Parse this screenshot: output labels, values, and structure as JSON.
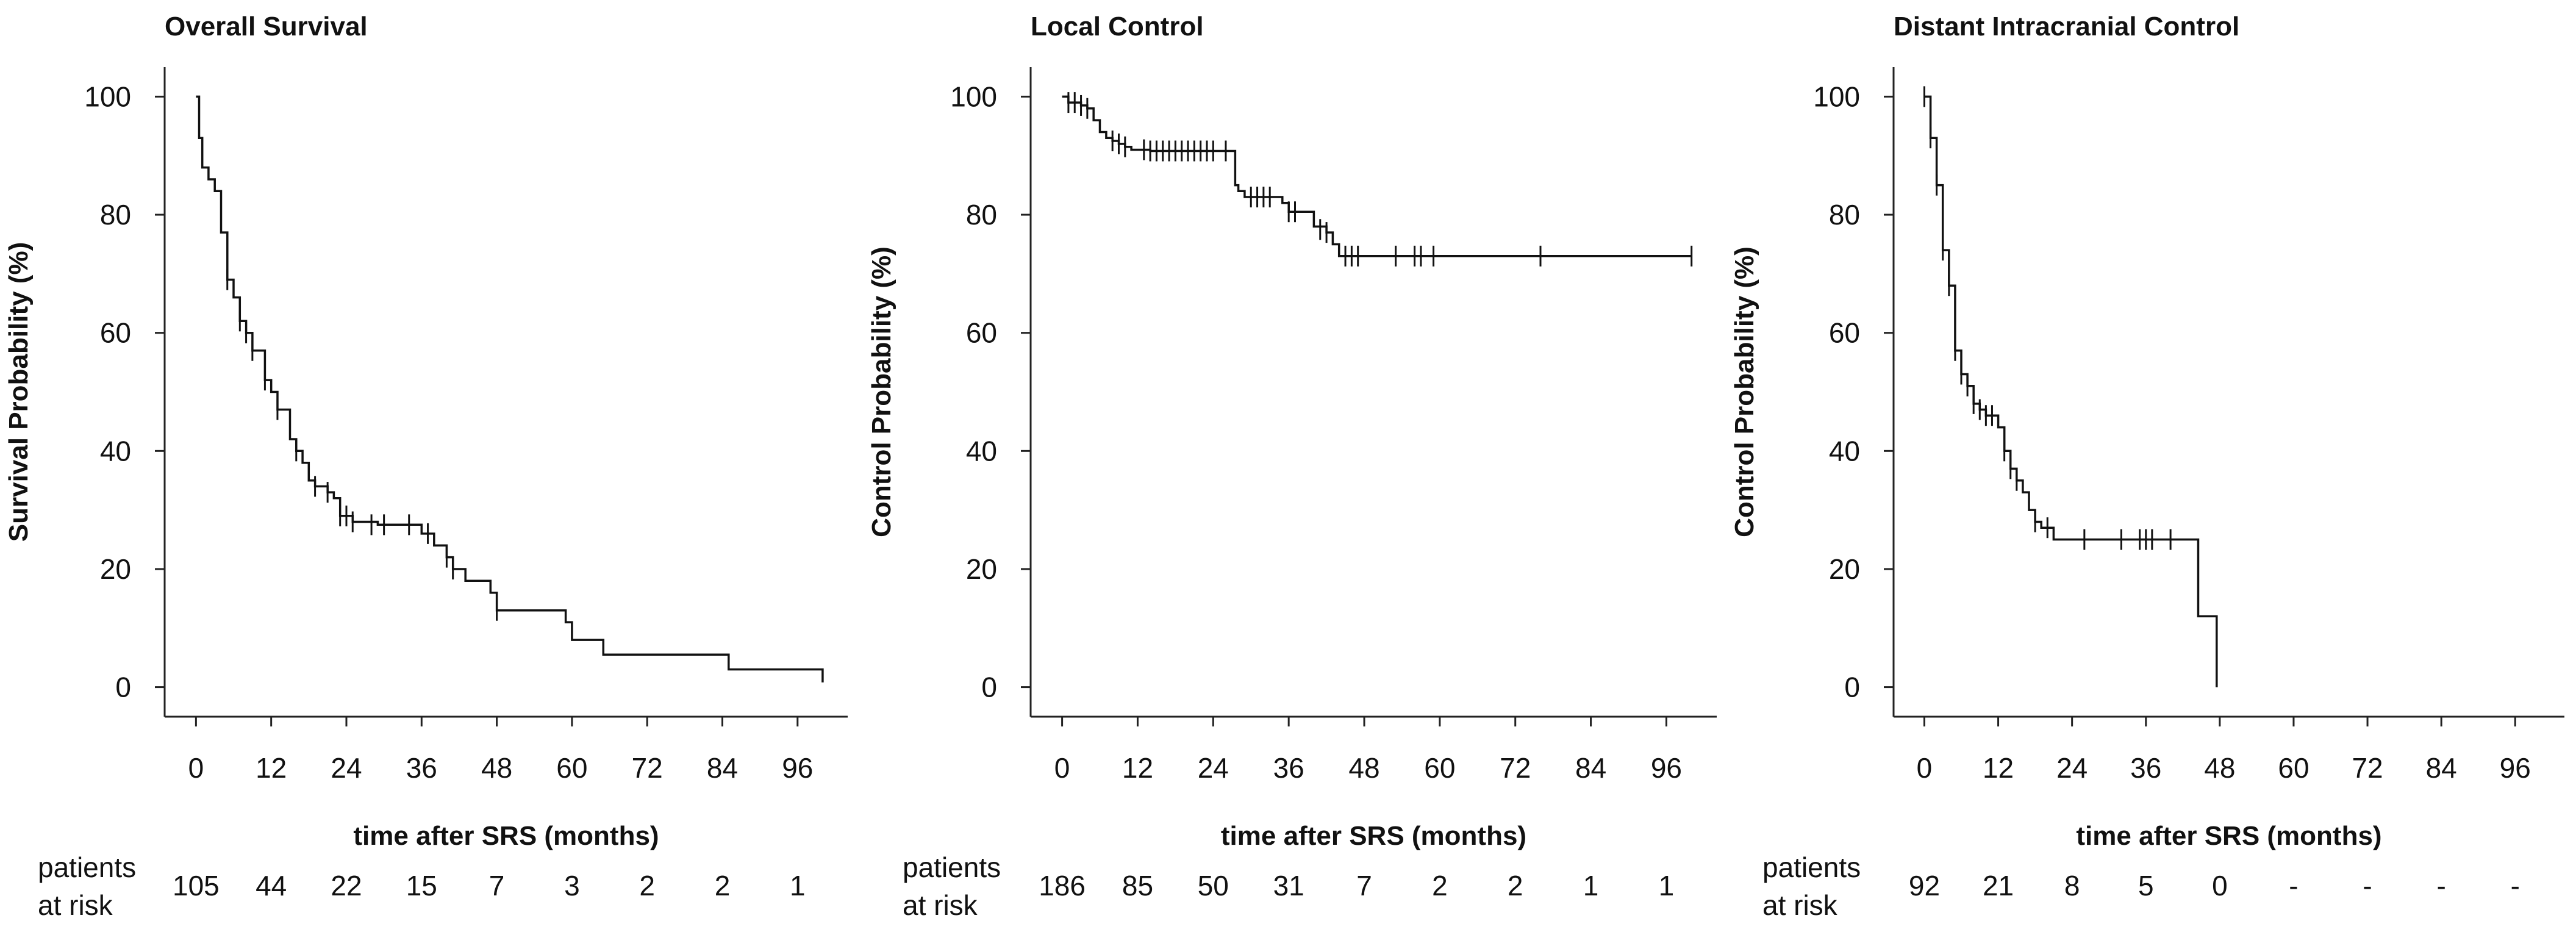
{
  "chart_data": [
    {
      "type": "line",
      "step": true,
      "title": "Overall Survival",
      "ylabel": "Survival Probability (%)",
      "xlabel": "time after SRS (months)",
      "xlim": [
        -5,
        104
      ],
      "ylim": [
        -5,
        105
      ],
      "xticks": [
        0,
        12,
        24,
        36,
        48,
        60,
        72,
        84,
        96
      ],
      "yticks": [
        0,
        20,
        40,
        60,
        80,
        100
      ],
      "risk_label": [
        "patients",
        "at risk"
      ],
      "at_risk": [
        "105",
        "44",
        "22",
        "15",
        "7",
        "3",
        "2",
        "2",
        "1"
      ],
      "series": [
        {
          "name": "Overall Survival",
          "points": [
            [
              0,
              100
            ],
            [
              0.5,
              93
            ],
            [
              1,
              88
            ],
            [
              2,
              86
            ],
            [
              3,
              84
            ],
            [
              4,
              77
            ],
            [
              5,
              69
            ],
            [
              6,
              66
            ],
            [
              7,
              62
            ],
            [
              8,
              60
            ],
            [
              9,
              57
            ],
            [
              10,
              57
            ],
            [
              11,
              52
            ],
            [
              12,
              50
            ],
            [
              13,
              47
            ],
            [
              14,
              47
            ],
            [
              15,
              42
            ],
            [
              16,
              40
            ],
            [
              17,
              38
            ],
            [
              18,
              35
            ],
            [
              19,
              34
            ],
            [
              20,
              34
            ],
            [
              21,
              33
            ],
            [
              22,
              32
            ],
            [
              23,
              29
            ],
            [
              24,
              29
            ],
            [
              25,
              28
            ],
            [
              27,
              28
            ],
            [
              29,
              27.5
            ],
            [
              34,
              27.5
            ],
            [
              36,
              26
            ],
            [
              38,
              24
            ],
            [
              40,
              22
            ],
            [
              41,
              20
            ],
            [
              43,
              18
            ],
            [
              47,
              16
            ],
            [
              48,
              13
            ],
            [
              59,
              11
            ],
            [
              60,
              8
            ],
            [
              65,
              5.5
            ],
            [
              85,
              3
            ],
            [
              100,
              0.8
            ]
          ],
          "censored": [
            [
              5,
              69
            ],
            [
              7,
              62
            ],
            [
              8,
              60
            ],
            [
              9,
              57
            ],
            [
              11,
              52
            ],
            [
              13,
              47
            ],
            [
              16,
              40
            ],
            [
              19,
              34
            ],
            [
              21,
              33
            ],
            [
              23,
              29
            ],
            [
              24,
              29
            ],
            [
              25,
              28
            ],
            [
              28,
              27.5
            ],
            [
              30,
              27.5
            ],
            [
              34,
              27.5
            ],
            [
              37,
              26
            ],
            [
              40,
              22
            ],
            [
              41,
              20
            ],
            [
              48,
              13
            ]
          ]
        }
      ]
    },
    {
      "type": "line",
      "step": true,
      "title": "Local Control",
      "ylabel": "Control Probability (%)",
      "xlabel": "time after SRS (months)",
      "xlim": [
        -5,
        104
      ],
      "ylim": [
        -5,
        105
      ],
      "xticks": [
        0,
        12,
        24,
        36,
        48,
        60,
        72,
        84,
        96
      ],
      "yticks": [
        0,
        20,
        40,
        60,
        80,
        100
      ],
      "risk_label": [
        "patients",
        "at risk"
      ],
      "at_risk": [
        "186",
        "85",
        "50",
        "31",
        "7",
        "2",
        "2",
        "1",
        "1"
      ],
      "series": [
        {
          "name": "Local Control",
          "points": [
            [
              0,
              100
            ],
            [
              1,
              99
            ],
            [
              3,
              98.5
            ],
            [
              4,
              98
            ],
            [
              5,
              96
            ],
            [
              6,
              94
            ],
            [
              7,
              93
            ],
            [
              8,
              92.5
            ],
            [
              9,
              92
            ],
            [
              10,
              91.5
            ],
            [
              11,
              91
            ],
            [
              12,
              91
            ],
            [
              14,
              90.8
            ],
            [
              27,
              90.8
            ],
            [
              27.5,
              85
            ],
            [
              28,
              84
            ],
            [
              29,
              83
            ],
            [
              35,
              82
            ],
            [
              36,
              80.5
            ],
            [
              39,
              80.5
            ],
            [
              40,
              78
            ],
            [
              42,
              77
            ],
            [
              43,
              75
            ],
            [
              44,
              73
            ],
            [
              100,
              73
            ]
          ],
          "censored": [
            [
              1,
              99
            ],
            [
              2,
              99
            ],
            [
              3,
              98.5
            ],
            [
              4,
              98
            ],
            [
              8,
              92.5
            ],
            [
              9,
              92
            ],
            [
              10,
              91.5
            ],
            [
              13,
              91
            ],
            [
              14,
              90.8
            ],
            [
              15,
              90.8
            ],
            [
              16,
              90.8
            ],
            [
              17,
              90.8
            ],
            [
              18,
              90.8
            ],
            [
              19,
              90.8
            ],
            [
              20,
              90.8
            ],
            [
              21,
              90.8
            ],
            [
              22,
              90.8
            ],
            [
              23,
              90.8
            ],
            [
              24,
              90.8
            ],
            [
              26,
              90.8
            ],
            [
              30,
              83
            ],
            [
              31,
              83
            ],
            [
              32,
              83
            ],
            [
              33,
              83
            ],
            [
              36,
              80.5
            ],
            [
              37,
              80.5
            ],
            [
              41,
              77.5
            ],
            [
              42,
              77
            ],
            [
              45,
              73
            ],
            [
              46,
              73
            ],
            [
              47,
              73
            ],
            [
              53,
              73
            ],
            [
              56,
              73
            ],
            [
              57,
              73
            ],
            [
              59,
              73
            ],
            [
              76,
              73
            ],
            [
              100,
              73
            ]
          ]
        }
      ]
    },
    {
      "type": "line",
      "step": true,
      "title": "Distant Intracranial Control",
      "ylabel": "Control Probability (%)",
      "xlabel": "time after SRS (months)",
      "xlim": [
        -5,
        104
      ],
      "ylim": [
        -5,
        105
      ],
      "xticks": [
        0,
        12,
        24,
        36,
        48,
        60,
        72,
        84,
        96
      ],
      "yticks": [
        0,
        20,
        40,
        60,
        80,
        100
      ],
      "risk_label": [
        "patients",
        "at risk"
      ],
      "at_risk": [
        "92",
        "21",
        "8",
        "5",
        "0",
        "-",
        "-",
        "-",
        "-"
      ],
      "series": [
        {
          "name": "Distant Intracranial Control",
          "points": [
            [
              0,
              100
            ],
            [
              1,
              93
            ],
            [
              2,
              85
            ],
            [
              3,
              74
            ],
            [
              4,
              68
            ],
            [
              5,
              57
            ],
            [
              6,
              53
            ],
            [
              7,
              51
            ],
            [
              8,
              48
            ],
            [
              9,
              47
            ],
            [
              10,
              46
            ],
            [
              11,
              46
            ],
            [
              12,
              44
            ],
            [
              13,
              40
            ],
            [
              14,
              37
            ],
            [
              15,
              35
            ],
            [
              16,
              33
            ],
            [
              17,
              30
            ],
            [
              18,
              28
            ],
            [
              19,
              27
            ],
            [
              20,
              27
            ],
            [
              21,
              25
            ],
            [
              24,
              25
            ],
            [
              44,
              25
            ],
            [
              44.5,
              12
            ],
            [
              47.5,
              12
            ],
            [
              47.5,
              0
            ]
          ],
          "censored": [
            [
              0,
              100
            ],
            [
              1,
              93
            ],
            [
              2,
              85
            ],
            [
              3,
              74
            ],
            [
              4,
              68
            ],
            [
              5,
              57
            ],
            [
              6,
              53
            ],
            [
              7,
              51
            ],
            [
              8,
              48
            ],
            [
              9,
              47
            ],
            [
              10,
              46
            ],
            [
              11,
              46
            ],
            [
              13,
              40
            ],
            [
              14,
              37
            ],
            [
              15,
              35
            ],
            [
              18,
              28
            ],
            [
              20,
              27
            ],
            [
              26,
              25
            ],
            [
              32,
              25
            ],
            [
              35,
              25
            ],
            [
              36,
              25
            ],
            [
              37,
              25
            ],
            [
              40,
              25
            ]
          ]
        }
      ]
    }
  ]
}
